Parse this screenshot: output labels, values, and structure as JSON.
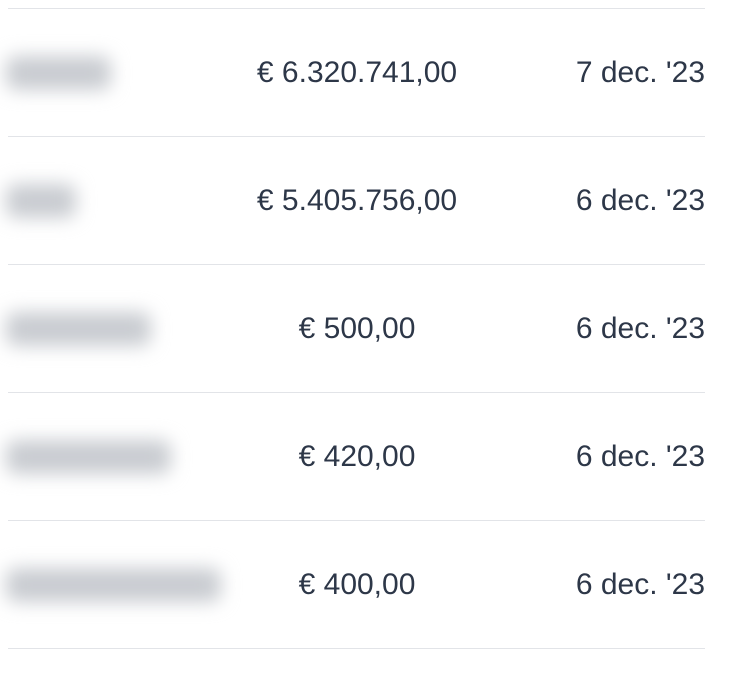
{
  "rows": [
    {
      "amount": "€ 6.320.741,00",
      "date": "7 dec. '23"
    },
    {
      "amount": "€ 5.405.756,00",
      "date": "6 dec. '23"
    },
    {
      "amount": "€ 500,00",
      "date": "6 dec. '23"
    },
    {
      "amount": "€ 420,00",
      "date": "6 dec. '23"
    },
    {
      "amount": "€ 400,00",
      "date": "6 dec. '23"
    }
  ]
}
